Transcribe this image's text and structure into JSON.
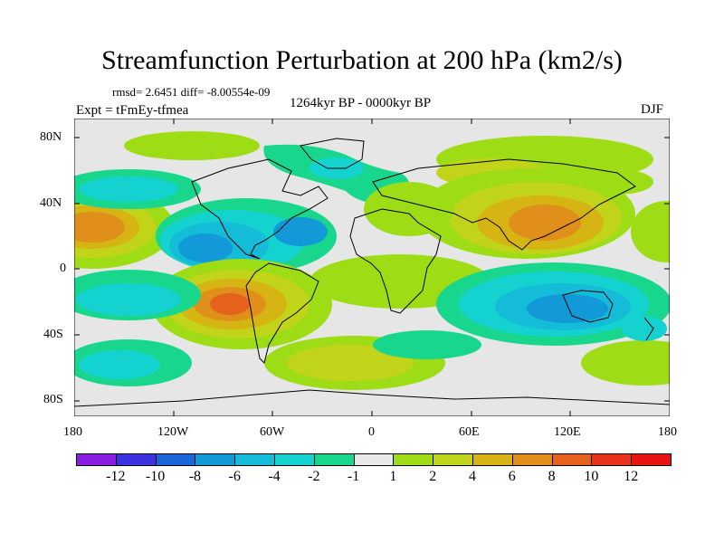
{
  "title": "Streamfunction Perturbation at 200 hPa (km2/s)",
  "stats": "rmsd= 2.6451 diff= -8.00554e-09",
  "period": "1264kyr BP - 0000kyr BP",
  "experiment": "Expt = tFmEy-tfmea",
  "season": "DJF",
  "y_ticks": [
    "80N",
    "40N",
    "0",
    "40S",
    "80S"
  ],
  "x_ticks": [
    "180",
    "120W",
    "60W",
    "0",
    "60E",
    "120E",
    "180"
  ],
  "colorbar": {
    "labels": [
      "-12",
      "-10",
      "-8",
      "-6",
      "-4",
      "-2",
      "-1",
      "1",
      "2",
      "4",
      "6",
      "8",
      "10",
      "12"
    ],
    "colors": [
      "#8a1fe0",
      "#3c33e0",
      "#1966d8",
      "#129ad8",
      "#14bcd8",
      "#14d2d0",
      "#18d68c",
      "#e8e8e8",
      "#9edc16",
      "#c2d41a",
      "#d6b414",
      "#e0901a",
      "#e6621c",
      "#e8341c",
      "#e81414"
    ]
  }
}
